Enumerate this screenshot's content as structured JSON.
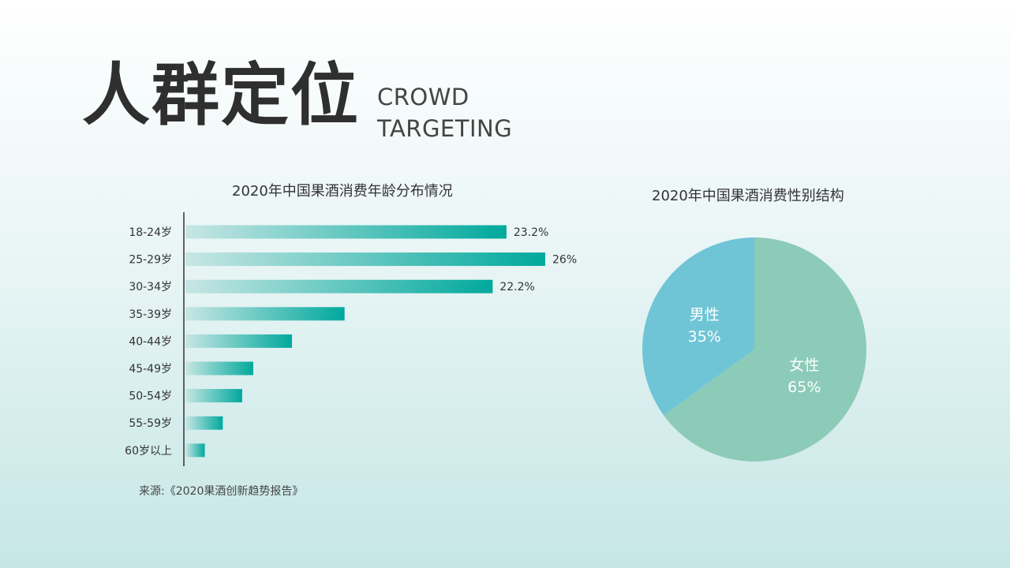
{
  "header": {
    "title_cn": "人群定位",
    "title_en_line1": "CROWD",
    "title_en_line2": "TARGETING"
  },
  "colors": {
    "bar_start": "#c8e6e4",
    "bar_end": "#00a99d",
    "pie_female": "#8ccbb8",
    "pie_male": "#6fc5d6",
    "axis": "#333333"
  },
  "chart_data": [
    {
      "type": "bar",
      "orientation": "horizontal",
      "title": "2020年中国果酒消费年龄分布情况",
      "categories": [
        "18-24岁",
        "25-29岁",
        "30-34岁",
        "35-39岁",
        "40-44岁",
        "45-49岁",
        "50-54岁",
        "55-59岁",
        "60岁以上"
      ],
      "values": [
        23.2,
        26,
        22.2,
        11.5,
        7.7,
        4.9,
        4.1,
        2.7,
        1.4
      ],
      "data_labels": [
        "23.2%",
        "26%",
        "22.2%",
        "",
        "",
        "",
        "",
        "",
        ""
      ],
      "xlim": [
        0,
        26
      ],
      "grid": false
    },
    {
      "type": "pie",
      "title": "2020年中国果酒消费性别结构",
      "slices": [
        {
          "label": "女性",
          "value": 65,
          "value_label": "65%",
          "color": "#8ccbb8"
        },
        {
          "label": "男性",
          "value": 35,
          "value_label": "35%",
          "color": "#6fc5d6"
        }
      ]
    }
  ],
  "source": "来源:《2020果酒创新趋势报告》"
}
